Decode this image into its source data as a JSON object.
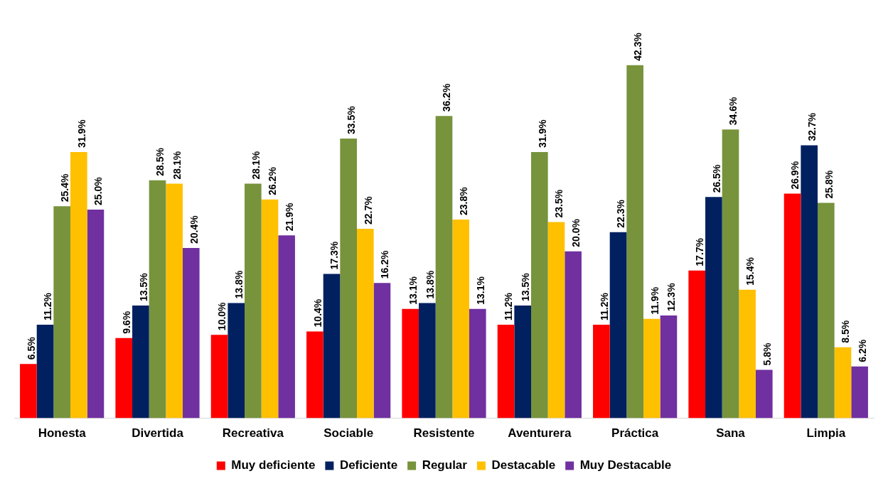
{
  "chart_data": {
    "type": "bar",
    "categories": [
      "Honesta",
      "Divertida",
      "Recreativa",
      "Sociable",
      "Resistente",
      "Aventurera",
      "Práctica",
      "Sana",
      "Limpia"
    ],
    "series": [
      {
        "name": "Muy deficiente",
        "color": "#ff0000",
        "values": [
          6.5,
          9.6,
          10.0,
          10.4,
          13.1,
          11.2,
          11.2,
          17.7,
          26.9
        ],
        "value_labels": [
          "6.5%",
          "9.6%",
          "10.0%",
          "10.4%",
          "13.1%",
          "11.2%",
          "11.2%",
          "17.7%",
          "26.9%"
        ]
      },
      {
        "name": "Deficiente",
        "color": "#002060",
        "values": [
          11.2,
          13.5,
          13.8,
          17.3,
          13.8,
          13.5,
          22.3,
          26.5,
          32.7
        ],
        "value_labels": [
          "11.2%",
          "13.5%",
          "13.8%",
          "17.3%",
          "13.8%",
          "13.5%",
          "22.3%",
          "26.5%",
          "32.7%"
        ]
      },
      {
        "name": "Regular",
        "color": "#77933c",
        "values": [
          25.4,
          28.5,
          28.1,
          33.5,
          36.2,
          31.9,
          42.3,
          34.6,
          25.8
        ],
        "value_labels": [
          "25.4%",
          "28.5%",
          "28.1%",
          "33.5%",
          "36.2%",
          "31.9%",
          "42.3%",
          "34.6%",
          "25.8%"
        ]
      },
      {
        "name": "Destacable",
        "color": "#ffc000",
        "values": [
          31.9,
          28.1,
          26.2,
          22.7,
          23.8,
          23.5,
          11.9,
          15.4,
          8.5
        ],
        "value_labels": [
          "31.9%",
          "28.1%",
          "26.2%",
          "22.7%",
          "23.8%",
          "23.5%",
          "11.9%",
          "15.4%",
          "8.5%"
        ]
      },
      {
        "name": "Muy Destacable",
        "color": "#7030a0",
        "values": [
          25.0,
          20.4,
          21.9,
          16.2,
          13.1,
          20.0,
          12.3,
          5.8,
          6.2
        ],
        "value_labels": [
          "25.0%",
          "20.4%",
          "21.9%",
          "16.2%",
          "13.1%",
          "20.0%",
          "12.3%",
          "5.8%",
          "6.2%"
        ]
      }
    ],
    "legend": "bottom",
    "grid": false
  }
}
